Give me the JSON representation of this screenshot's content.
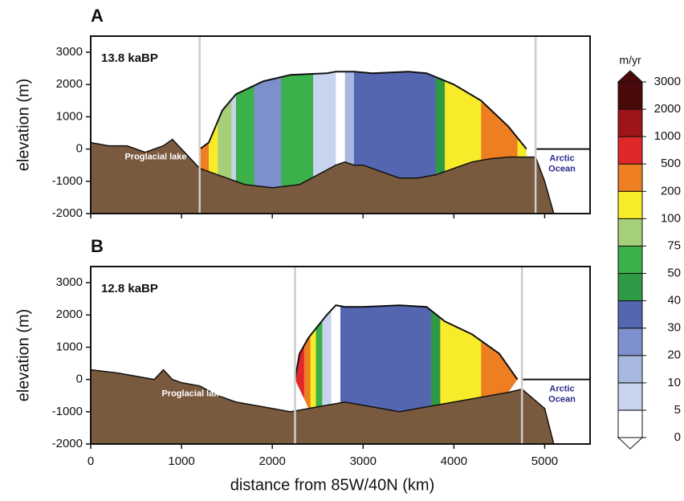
{
  "chart_data": [
    {
      "type": "section",
      "panel": "A",
      "label": "13.8 kaBP",
      "y_label": "elevation (m)",
      "xlim": [
        0,
        5500
      ],
      "ylim": [
        -2000,
        3500
      ],
      "xticks": [
        0,
        1000,
        2000,
        3000,
        4000,
        5000
      ],
      "yticks": [
        -2000,
        -1000,
        0,
        1000,
        2000,
        3000
      ],
      "annotations": [
        "Proglacial lake",
        "Arctic Ocean"
      ],
      "markers": [
        1200,
        4900
      ],
      "surface": {
        "x": [
          1200,
          1300,
          1450,
          1600,
          1900,
          2200,
          2600,
          2700,
          2900,
          3100,
          3500,
          3700,
          4000,
          4300,
          4600,
          4800
        ],
        "values": [
          0,
          200,
          1200,
          1700,
          2100,
          2300,
          2350,
          2400,
          2400,
          2350,
          2400,
          2350,
          2000,
          1500,
          700,
          0
        ]
      },
      "bed": {
        "x": [
          0,
          200,
          400,
          600,
          800,
          900,
          1000,
          1100,
          1200,
          1400,
          1700,
          2000,
          2300,
          2500,
          2700,
          2800,
          2900,
          3000,
          3200,
          3400,
          3600,
          3800,
          4000,
          4200,
          4400,
          4600,
          4800,
          4900,
          5000,
          5100
        ],
        "values": [
          200,
          100,
          100,
          -100,
          100,
          300,
          0,
          -300,
          -600,
          -800,
          -1100,
          -1200,
          -1100,
          -800,
          -500,
          -400,
          -500,
          -500,
          -700,
          -900,
          -900,
          -800,
          -600,
          -400,
          -300,
          -250,
          -250,
          -250,
          -1000,
          -2000
        ]
      },
      "velocity_bands": [
        {
          "x0": 1200,
          "x1": 1300,
          "color": "#ee7e22"
        },
        {
          "x0": 1300,
          "x1": 1400,
          "color": "#f8ec2a"
        },
        {
          "x0": 1400,
          "x1": 1550,
          "color": "#a6cf7a"
        },
        {
          "x0": 1550,
          "x1": 1600,
          "color": "#c8d4ee"
        },
        {
          "x0": 1600,
          "x1": 1800,
          "color": "#3cb04a"
        },
        {
          "x0": 1800,
          "x1": 2100,
          "color": "#7d8fcc"
        },
        {
          "x0": 2100,
          "x1": 2450,
          "color": "#3cb04a"
        },
        {
          "x0": 2450,
          "x1": 2700,
          "color": "#c8d4ee"
        },
        {
          "x0": 2700,
          "x1": 2800,
          "color": "#ffffff"
        },
        {
          "x0": 2800,
          "x1": 2900,
          "color": "#a8b8e0"
        },
        {
          "x0": 2900,
          "x1": 3800,
          "color": "#5466b0"
        },
        {
          "x0": 3800,
          "x1": 3900,
          "color": "#2e9a45"
        },
        {
          "x0": 3900,
          "x1": 4300,
          "color": "#f8ec2a"
        },
        {
          "x0": 4300,
          "x1": 4700,
          "color": "#ee7e22"
        },
        {
          "x0": 4700,
          "x1": 4800,
          "color": "#f8ec2a"
        }
      ]
    },
    {
      "type": "section",
      "panel": "B",
      "label": "12.8 kaBP",
      "y_label": "elevation (m)",
      "x_label": "distance from 85W/40N (km)",
      "xlim": [
        0,
        5500
      ],
      "ylim": [
        -2000,
        3500
      ],
      "xticks": [
        0,
        1000,
        2000,
        3000,
        4000,
        5000
      ],
      "yticks": [
        -2000,
        -1000,
        0,
        1000,
        2000,
        3000
      ],
      "annotations": [
        "Proglacial lake",
        "Arctic Ocean"
      ],
      "markers": [
        2250,
        4750
      ],
      "surface": {
        "x": [
          2250,
          2300,
          2400,
          2600,
          2700,
          2800,
          3000,
          3400,
          3700,
          3900,
          4200,
          4500,
          4700
        ],
        "values": [
          0,
          800,
          1300,
          2000,
          2300,
          2250,
          2250,
          2300,
          2250,
          1800,
          1400,
          800,
          0
        ]
      },
      "bed": {
        "x": [
          0,
          300,
          500,
          700,
          800,
          900,
          1000,
          1200,
          1400,
          1600,
          1800,
          2000,
          2200,
          2400,
          2600,
          2800,
          3000,
          3200,
          3400,
          3600,
          3800,
          4000,
          4200,
          4400,
          4600,
          4750,
          5000,
          5100
        ],
        "values": [
          300,
          200,
          100,
          0,
          300,
          0,
          -100,
          -200,
          -500,
          -700,
          -800,
          -900,
          -1000,
          -900,
          -800,
          -700,
          -800,
          -900,
          -1000,
          -900,
          -800,
          -700,
          -600,
          -500,
          -400,
          -300,
          -900,
          -2000
        ]
      },
      "velocity_bands": [
        {
          "x0": 2250,
          "x1": 2350,
          "color": "#e0282a"
        },
        {
          "x0": 2350,
          "x1": 2420,
          "color": "#ee7e22"
        },
        {
          "x0": 2420,
          "x1": 2480,
          "color": "#f8ec2a"
        },
        {
          "x0": 2480,
          "x1": 2550,
          "color": "#3cb04a"
        },
        {
          "x0": 2550,
          "x1": 2650,
          "color": "#c8d4ee"
        },
        {
          "x0": 2650,
          "x1": 2750,
          "color": "#ffffff"
        },
        {
          "x0": 2750,
          "x1": 3750,
          "color": "#5466b0"
        },
        {
          "x0": 3750,
          "x1": 3850,
          "color": "#2e9a45"
        },
        {
          "x0": 3850,
          "x1": 4300,
          "color": "#f8ec2a"
        },
        {
          "x0": 4300,
          "x1": 4700,
          "color": "#ee7e22"
        }
      ]
    }
  ],
  "colorbar": {
    "unit": "m/yr",
    "levels": [
      0,
      5,
      10,
      20,
      30,
      40,
      50,
      75,
      100,
      200,
      500,
      1000,
      2000,
      3000
    ],
    "colors": [
      "#ffffff",
      "#c8d4ee",
      "#a8b8e0",
      "#7d8fcc",
      "#5466b0",
      "#2e9a45",
      "#3cb04a",
      "#a6cf7a",
      "#f8ec2a",
      "#ee7e22",
      "#e0282a",
      "#9e1418",
      "#4a0a0c"
    ]
  }
}
